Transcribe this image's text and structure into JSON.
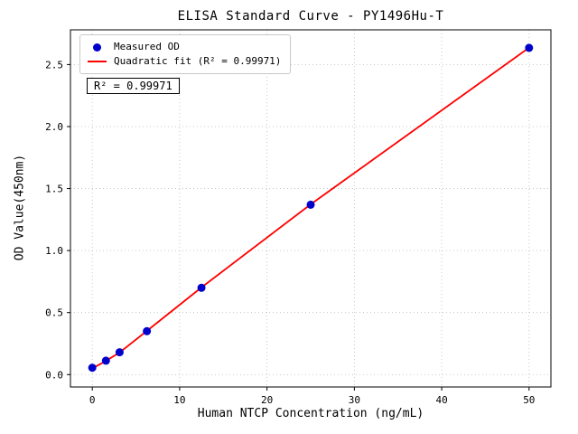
{
  "title": "ELISA Standard Curve - PY1496Hu-T",
  "annotation_text": "R² = 0.99971",
  "legend": {
    "measured_label": "Measured OD",
    "fit_label": "Quadratic fit (R² = 0.99971)"
  },
  "chart_data": {
    "type": "scatter",
    "title": "ELISA Standard Curve - PY1496Hu-T",
    "xlabel": "Human NTCP Concentration (ng/mL)",
    "ylabel": "OD Value(450nm)",
    "xlim": [
      -2.5,
      52.5
    ],
    "ylim": [
      -0.1,
      2.78
    ],
    "xticks": [
      0,
      10,
      20,
      30,
      40,
      50
    ],
    "yticks": [
      0,
      0.5,
      1,
      1.5,
      2,
      2.5
    ],
    "grid": true,
    "legend_position": "upper-left",
    "colors": {
      "points": "#0000cd",
      "fit_line": "#ff0000",
      "grid": "#bbbbbb",
      "frame": "#000000"
    },
    "series": [
      {
        "name": "Measured OD",
        "type": "scatter",
        "color": "#0000cd",
        "x": [
          0,
          1.563,
          3.125,
          6.25,
          12.5,
          25,
          50
        ],
        "y": [
          0.055,
          0.112,
          0.18,
          0.35,
          0.7,
          1.37,
          2.635
        ]
      },
      {
        "name": "Quadratic fit (R² = 0.99971)",
        "type": "line",
        "color": "#ff0000",
        "x": [
          0,
          1.563,
          3.125,
          6.25,
          12.5,
          25,
          50
        ],
        "y": [
          0.05,
          0.11,
          0.178,
          0.352,
          0.703,
          1.373,
          2.636
        ]
      }
    ]
  }
}
